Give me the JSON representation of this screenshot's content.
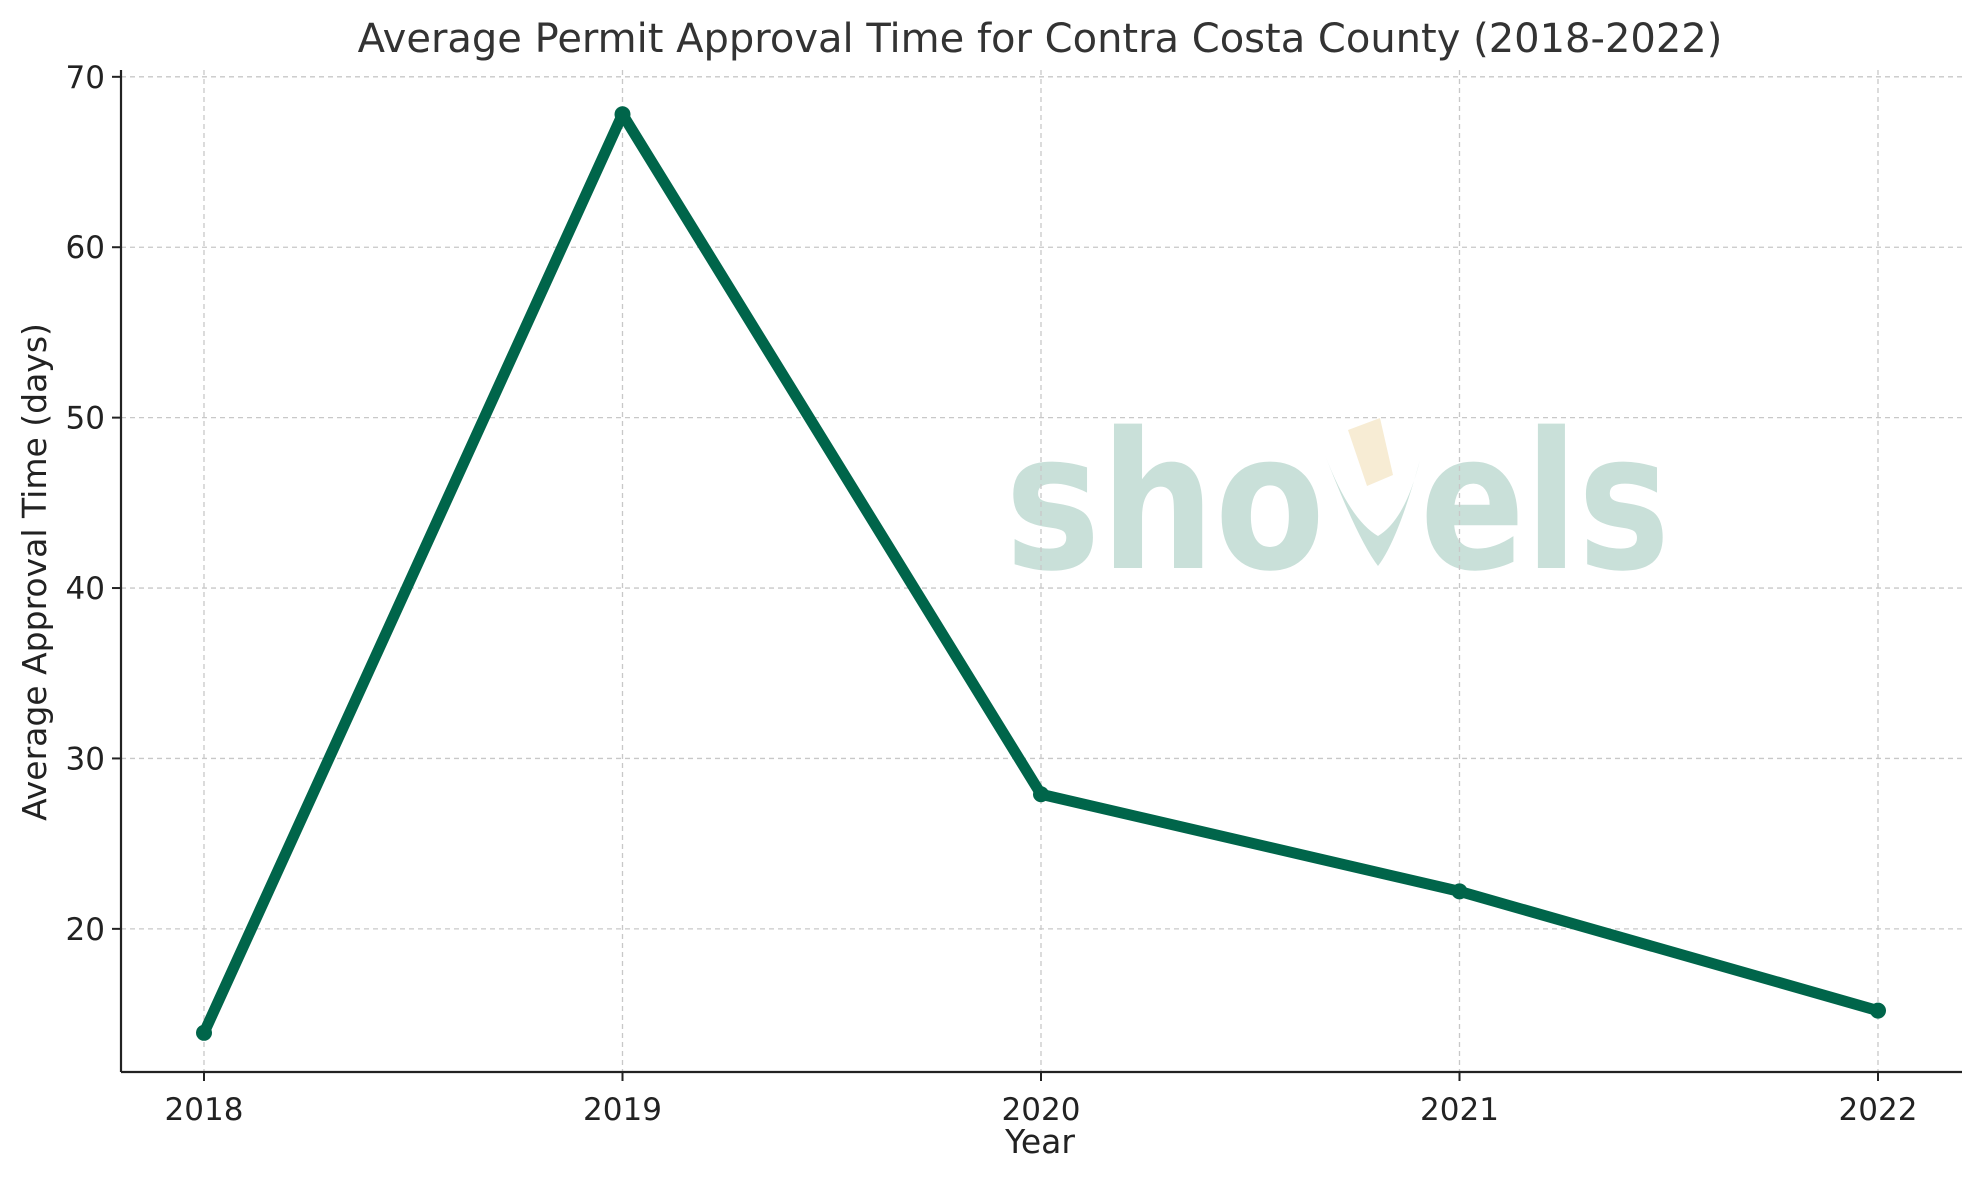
{
  "chart_data": {
    "type": "line",
    "title": "Average Permit Approval Time for Contra Costa County (2018-2022)",
    "xlabel": "Year",
    "ylabel": "Average Approval Time (days)",
    "categories": [
      "2018",
      "2019",
      "2020",
      "2021",
      "2022"
    ],
    "series": [
      {
        "values": [
          13.9,
          67.8,
          27.9,
          22.2,
          15.2
        ]
      }
    ],
    "ylim": [
      11.6,
      70.4
    ],
    "yticks": [
      20,
      30,
      40,
      50,
      60,
      70
    ],
    "grid": true,
    "colors": {
      "line": "#00654a",
      "grid": "#c8c8c8",
      "axis": "#222222"
    },
    "watermark": "shovels"
  }
}
